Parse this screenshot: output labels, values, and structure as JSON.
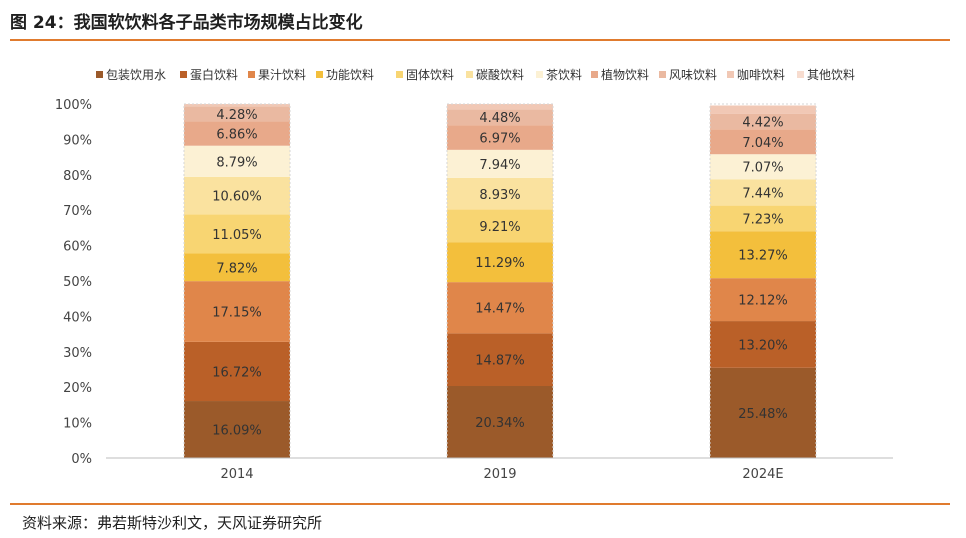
{
  "header": {
    "title": "图 24：我国软饮料各子品类市场规模占比变化"
  },
  "footer": {
    "source": "资料来源：弗若斯特沙利文，天风证券研究所"
  },
  "chart_data": {
    "type": "bar",
    "stacked": true,
    "categories": [
      "2014",
      "2019",
      "2024E"
    ],
    "ylim": [
      0,
      100
    ],
    "yticks": [
      "0%",
      "10%",
      "20%",
      "30%",
      "40%",
      "50%",
      "60%",
      "70%",
      "80%",
      "90%",
      "100%"
    ],
    "legend_position": "top",
    "grid": false,
    "series": [
      {
        "name": "包装饮用水",
        "color": "#9b5a2a",
        "values": [
          16.09,
          20.34,
          25.48
        ],
        "labels": [
          "16.09%",
          "20.34%",
          "25.48%"
        ]
      },
      {
        "name": "蛋白饮料",
        "color": "#ba6028",
        "values": [
          16.72,
          14.87,
          13.2
        ],
        "labels": [
          "16.72%",
          "14.87%",
          "13.20%"
        ]
      },
      {
        "name": "果汁饮料",
        "color": "#e0864a",
        "values": [
          17.15,
          14.47,
          12.12
        ],
        "labels": [
          "17.15%",
          "14.47%",
          "12.12%"
        ]
      },
      {
        "name": "功能饮料",
        "color": "#f3bf3c",
        "values": [
          7.82,
          11.29,
          13.27
        ],
        "labels": [
          "7.82%",
          "11.29%",
          "13.27%"
        ]
      },
      {
        "name": "固体饮料",
        "color": "#f8d572",
        "values": [
          11.05,
          9.21,
          7.23
        ],
        "labels": [
          "11.05%",
          "9.21%",
          "7.23%"
        ]
      },
      {
        "name": "碳酸饮料",
        "color": "#fae29f",
        "values": [
          10.6,
          8.93,
          7.44
        ],
        "labels": [
          "10.60%",
          "8.93%",
          "7.44%"
        ]
      },
      {
        "name": "茶饮料",
        "color": "#fcf1d4",
        "values": [
          8.79,
          7.94,
          7.07
        ],
        "labels": [
          "8.79%",
          "7.94%",
          "7.07%"
        ]
      },
      {
        "name": "植物饮料",
        "color": "#e8a98a",
        "values": [
          6.86,
          6.97,
          7.04
        ],
        "labels": [
          "6.86%",
          "6.97%",
          "7.04%"
        ]
      },
      {
        "name": "风味饮料",
        "color": "#eab9a1",
        "values": [
          4.28,
          4.48,
          4.42
        ],
        "labels": [
          "4.28%",
          "4.48%",
          "4.42%"
        ]
      },
      {
        "name": "咖啡饮料",
        "color": "#f1c8b5",
        "values": [
          0.64,
          1.5,
          2.31
        ],
        "labels": [
          "",
          "",
          ""
        ]
      },
      {
        "name": "其他饮料",
        "color": "#f7dccf",
        "values": [
          0,
          0,
          0
        ],
        "labels": [
          "",
          "",
          ""
        ]
      }
    ]
  }
}
